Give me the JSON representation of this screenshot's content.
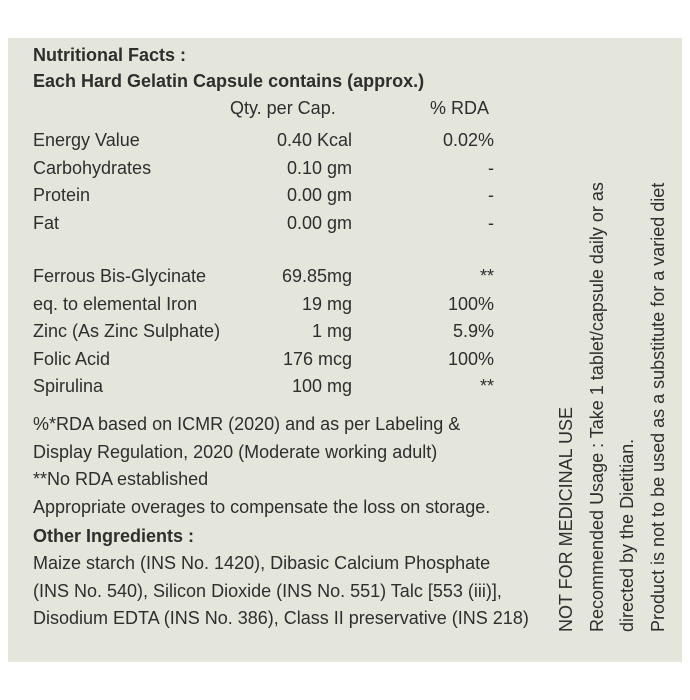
{
  "header": {
    "title": "Nutritional Facts :",
    "subtitle": "Each Hard Gelatin Capsule contains (approx.)"
  },
  "table": {
    "columns": [
      "Qty. per Cap.",
      "% RDA"
    ],
    "groups": [
      {
        "rows": [
          [
            "Energy Value",
            "0.40 Kcal",
            "0.02%"
          ],
          [
            "Carbohydrates",
            "0.10 gm",
            "-"
          ],
          [
            "Protein",
            "0.00 gm",
            "-"
          ],
          [
            "Fat",
            "0.00 gm",
            "-"
          ]
        ]
      },
      {
        "rows": [
          [
            "Ferrous Bis-Glycinate",
            "69.85mg",
            "**"
          ],
          [
            "eq. to elemental Iron",
            "19 mg",
            "100%"
          ],
          [
            "Zinc (As Zinc Sulphate)",
            "1 mg",
            "5.9%"
          ],
          [
            "Folic Acid",
            "176 mcg",
            "100%"
          ],
          [
            "Spirulina",
            "100 mg",
            "**"
          ]
        ]
      }
    ]
  },
  "notes": [
    "%*RDA based on ICMR (2020) and as per Labeling &",
    "Display Regulation, 2020 (Moderate working adult)",
    "**No RDA established",
    "Appropriate overages to compensate the loss on storage."
  ],
  "other_ingredients": {
    "title": "Other Ingredients :",
    "lines": [
      "Maize starch (INS No. 1420), Dibasic Calcium Phosphate",
      "(INS No. 540), Silicon Dioxide (INS No. 551) Talc [553 (iii)],",
      "Disodium EDTA (INS No. 386), Class II preservative (INS 218)"
    ]
  },
  "side_text": [
    "NOT FOR MEDICINAL USE",
    "Recommended Usage : Take 1 tablet/capsule daily or as",
    "directed by the Dietitian.",
    "Product is not to be used as a substitute for a varied diet"
  ]
}
